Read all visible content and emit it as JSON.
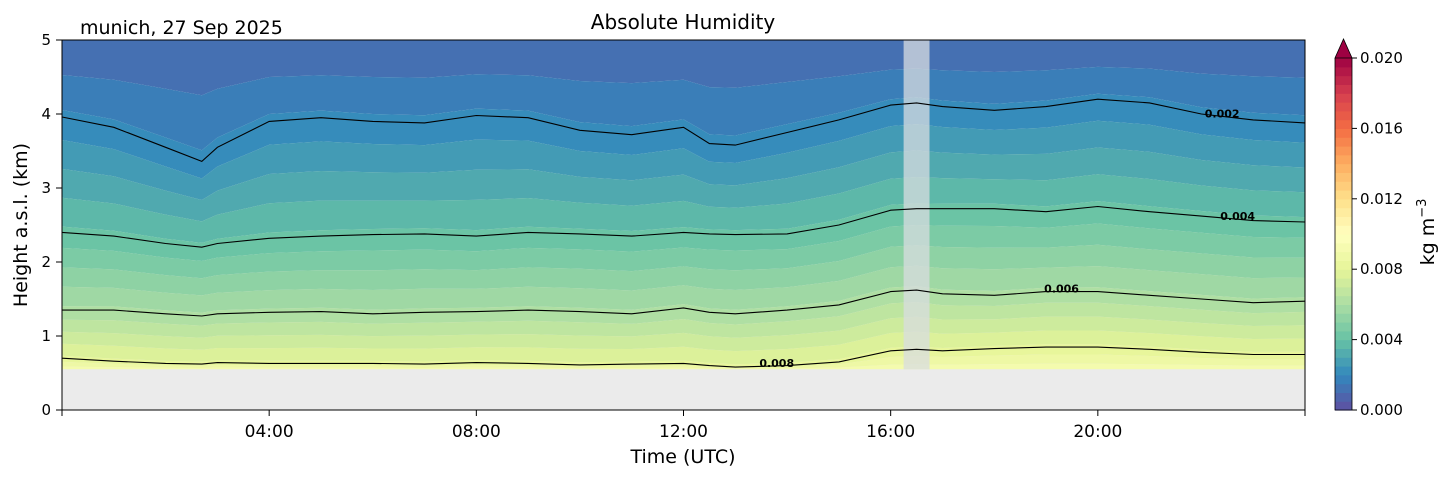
{
  "chart_data": {
    "type": "contour",
    "title": "Absolute Humidity",
    "subtitle": "munich, 27 Sep 2025",
    "xlabel": "Time (UTC)",
    "ylabel": "Height a.s.l. (km)",
    "xlim_hours": [
      0,
      24
    ],
    "ylim_km": [
      0,
      5
    ],
    "x_ticks": [
      {
        "hour": 4,
        "label": "04:00"
      },
      {
        "hour": 8,
        "label": "08:00"
      },
      {
        "hour": 12,
        "label": "12:00"
      },
      {
        "hour": 16,
        "label": "16:00"
      },
      {
        "hour": 20,
        "label": "20:00"
      }
    ],
    "y_ticks": [
      {
        "value": 0,
        "label": "0"
      },
      {
        "value": 1,
        "label": "1"
      },
      {
        "value": 2,
        "label": "2"
      },
      {
        "value": 3,
        "label": "3"
      },
      {
        "value": 4,
        "label": "4"
      },
      {
        "value": 5,
        "label": "5"
      }
    ],
    "ground_height_km": 0.55,
    "missing_data_hours": [
      16.25,
      16.75
    ],
    "time_hours": [
      0.1,
      1,
      2,
      2.7,
      3,
      4,
      5,
      6,
      7,
      8,
      9,
      10,
      11,
      12,
      12.5,
      13,
      14,
      15,
      16,
      16.5,
      17,
      18,
      19,
      20,
      21,
      22,
      23,
      23.9
    ],
    "contours": [
      {
        "level": 0.002,
        "label": "0.002",
        "label_hour": 22.4,
        "heights_km": [
          3.96,
          3.82,
          3.55,
          3.36,
          3.55,
          3.9,
          3.95,
          3.9,
          3.88,
          3.98,
          3.95,
          3.78,
          3.72,
          3.82,
          3.6,
          3.58,
          3.75,
          3.92,
          4.12,
          4.15,
          4.1,
          4.05,
          4.1,
          4.2,
          4.15,
          4.0,
          3.92,
          3.88
        ]
      },
      {
        "level": 0.004,
        "label": "0.004",
        "label_hour": 22.7,
        "heights_km": [
          2.4,
          2.35,
          2.25,
          2.2,
          2.25,
          2.32,
          2.35,
          2.37,
          2.38,
          2.35,
          2.4,
          2.38,
          2.35,
          2.4,
          2.38,
          2.37,
          2.38,
          2.5,
          2.7,
          2.72,
          2.72,
          2.72,
          2.68,
          2.75,
          2.68,
          2.62,
          2.56,
          2.54
        ]
      },
      {
        "level": 0.006,
        "label": "0.006",
        "label_hour": 19.3,
        "heights_km": [
          1.35,
          1.35,
          1.3,
          1.27,
          1.3,
          1.32,
          1.33,
          1.3,
          1.32,
          1.33,
          1.35,
          1.33,
          1.3,
          1.38,
          1.32,
          1.3,
          1.35,
          1.42,
          1.6,
          1.62,
          1.57,
          1.55,
          1.6,
          1.6,
          1.55,
          1.5,
          1.45,
          1.47
        ]
      },
      {
        "level": 0.008,
        "label": "0.008",
        "label_hour": 13.8,
        "heights_km": [
          0.7,
          0.66,
          0.63,
          0.62,
          0.64,
          0.63,
          0.63,
          0.63,
          0.62,
          0.64,
          0.63,
          0.61,
          0.62,
          0.63,
          0.6,
          0.58,
          0.6,
          0.65,
          0.8,
          0.82,
          0.8,
          0.83,
          0.85,
          0.85,
          0.82,
          0.78,
          0.75,
          0.75
        ]
      }
    ],
    "colorbar": {
      "label": "kg m",
      "label_superscript": "−3",
      "min": 0.0,
      "max": 0.02,
      "extend": "max",
      "colormap": "Spectral_r",
      "ticks": [
        {
          "value": 0.0,
          "label": "0.000"
        },
        {
          "value": 0.004,
          "label": "0.004"
        },
        {
          "value": 0.008,
          "label": "0.008"
        },
        {
          "value": 0.012,
          "label": "0.012"
        },
        {
          "value": 0.016,
          "label": "0.016"
        },
        {
          "value": 0.02,
          "label": "0.020"
        }
      ]
    }
  },
  "colors": {
    "ground": "#ebebeb",
    "gap": "#d8dce0",
    "contour_line": "#000000",
    "extend_tip": "#9e0142"
  }
}
